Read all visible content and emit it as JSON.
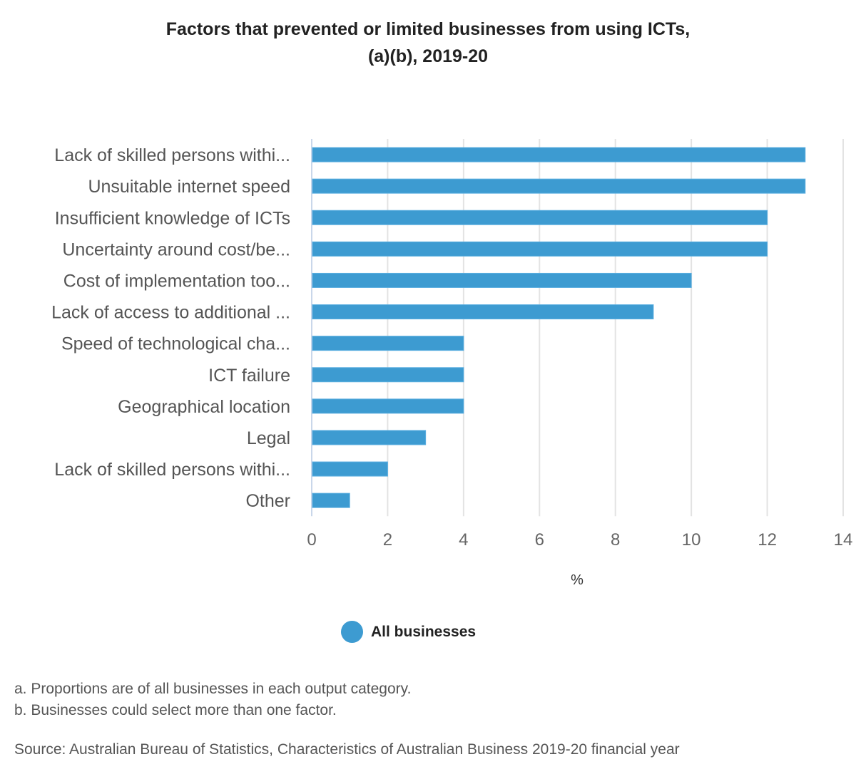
{
  "chart_data": {
    "type": "bar",
    "orientation": "horizontal",
    "title": "Factors that prevented or limited businesses from using ICTs, (a)(b), 2019-20",
    "title_lines": [
      "Factors that prevented or limited businesses from using ICTs,",
      "(a)(b), 2019-20"
    ],
    "categories": [
      "Lack of skilled persons withi...",
      "Unsuitable internet speed",
      "Insufficient knowledge of ICTs",
      "Uncertainty around cost/be...",
      "Cost of implementation too...",
      "Lack of access to additional ...",
      "Speed of technological cha...",
      "ICT failure",
      "Geographical location",
      "Legal",
      "Lack of skilled persons withi...",
      "Other"
    ],
    "series": [
      {
        "name": "All businesses",
        "color": "#3d9bd1",
        "values": [
          13,
          13,
          12,
          12,
          10,
          9,
          4,
          4,
          4,
          3,
          2,
          1
        ]
      }
    ],
    "xlabel": "%",
    "ylabel": "",
    "xlim": [
      0,
      14
    ],
    "xticks": [
      0,
      2,
      4,
      6,
      8,
      10,
      12,
      14
    ],
    "grid": true,
    "legend_position": "bottom"
  },
  "legend": {
    "label": "All businesses"
  },
  "notes": [
    "a. Proportions are of all businesses in each output category.",
    "b. Businesses could select more than one factor."
  ],
  "source": "Source: Australian Bureau of Statistics, Characteristics of Australian Business 2019-20 financial year"
}
